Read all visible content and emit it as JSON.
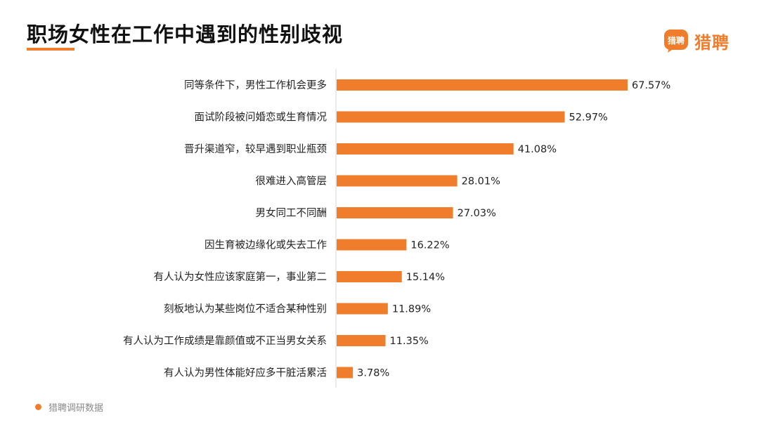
{
  "header": {
    "title": "职场女性在工作中遇到的性别歧视",
    "logo_text": "猎聘",
    "logo_mark_text": "猎聘",
    "accent_color": "#ef7d2c"
  },
  "footer": {
    "source": "猎聘调研数据"
  },
  "chart_data": {
    "type": "bar",
    "orientation": "horizontal",
    "title": "职场女性在工作中遇到的性别歧视",
    "categories": [
      "同等条件下，男性工作机会更多",
      "面试阶段被问婚恋或生育情况",
      "晋升渠道窄，较早遇到职业瓶颈",
      "很难进入高管层",
      "男女同工不同酬",
      "因生育被边缘化或失去工作",
      "有人认为女性应该家庭第一，事业第二",
      "刻板地认为某些岗位不适合某种性别",
      "有人认为工作成绩是靠颜值或不正当男女关系",
      "有人认为男性体能好应多干脏活累活"
    ],
    "values": [
      67.57,
      52.97,
      41.08,
      28.01,
      27.03,
      16.22,
      15.14,
      11.89,
      11.35,
      3.78
    ],
    "value_labels": [
      "67.57%",
      "52.97%",
      "41.08%",
      "28.01%",
      "27.03%",
      "16.22%",
      "15.14%",
      "11.89%",
      "11.35%",
      "3.78%"
    ],
    "unit": "%",
    "xlim": [
      0,
      70
    ],
    "bar_color": "#ef7d2c",
    "grid": false
  }
}
